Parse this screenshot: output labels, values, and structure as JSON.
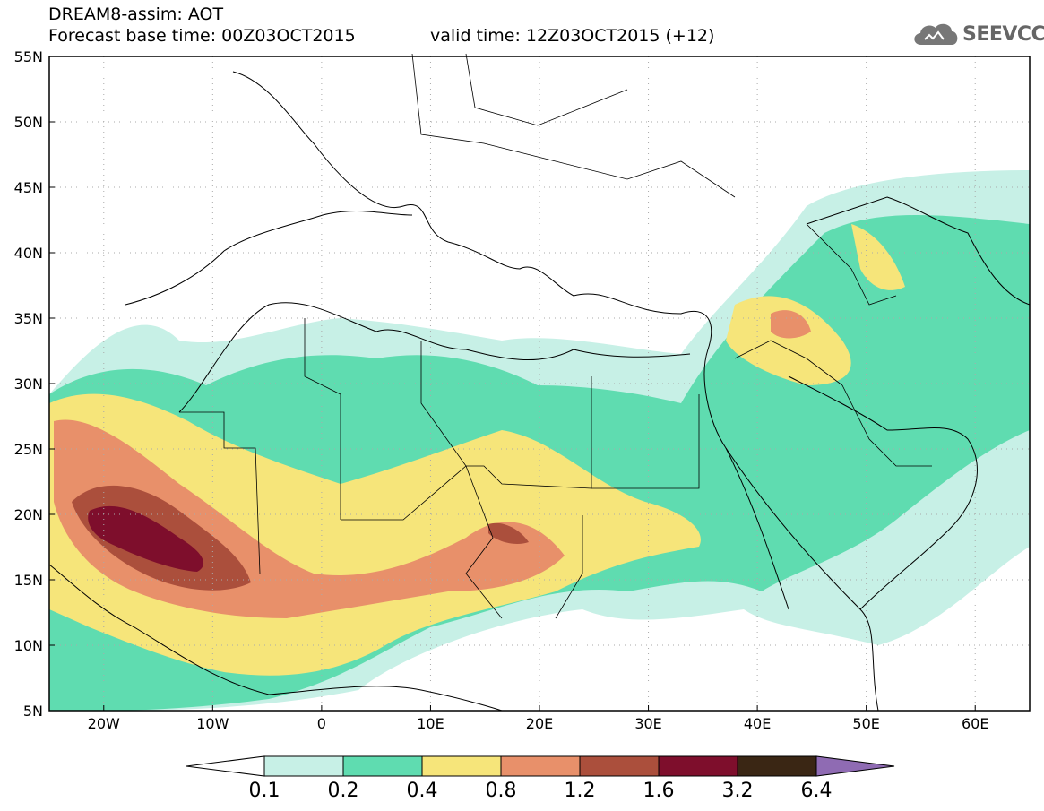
{
  "title": {
    "line1": "DREAM8-assim: AOT",
    "line2": "Forecast base time: 00Z03OCT2015",
    "valid": "valid time: 12Z03OCT2015 (+12)"
  },
  "logo": {
    "text": "SEEVCCC",
    "icon": "cloud-icon"
  },
  "map": {
    "lat_labels": [
      "55N",
      "50N",
      "45N",
      "40N",
      "35N",
      "30N",
      "25N",
      "20N",
      "15N",
      "10N",
      "5N"
    ],
    "lat_values": [
      55,
      50,
      45,
      40,
      35,
      30,
      25,
      20,
      15,
      10,
      5
    ],
    "lon_labels": [
      "20W",
      "10W",
      "0",
      "10E",
      "20E",
      "30E",
      "40E",
      "50E",
      "60E"
    ],
    "lon_values": [
      -20,
      -10,
      0,
      10,
      20,
      30,
      40,
      50,
      60
    ],
    "extent": {
      "lon_min": -25,
      "lon_max": 65,
      "lat_min": 5,
      "lat_max": 55
    }
  },
  "colorbar": {
    "labels": [
      "0.1",
      "0.2",
      "0.4",
      "0.8",
      "1.2",
      "1.6",
      "3.2",
      "6.4"
    ],
    "colors": [
      "#ffffff",
      "#c7f0e6",
      "#5fdcb0",
      "#f6e57a",
      "#e8906a",
      "#ab4f3c",
      "#7e0e2c",
      "#3a2614",
      "#8f6bb3"
    ]
  }
}
